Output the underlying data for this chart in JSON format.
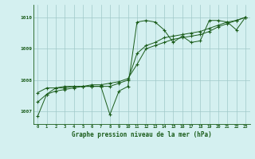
{
  "title": "Graphe pression niveau de la mer (hPa)",
  "bg_color": "#d4f0f0",
  "grid_color": "#a0c8c8",
  "line_color": "#1a5c1a",
  "xlim": [
    -0.5,
    23.5
  ],
  "ylim": [
    1006.6,
    1010.4
  ],
  "yticks": [
    1007,
    1008,
    1009,
    1010
  ],
  "xticks": [
    0,
    1,
    2,
    3,
    4,
    5,
    6,
    7,
    8,
    9,
    10,
    11,
    12,
    13,
    14,
    15,
    16,
    17,
    18,
    19,
    20,
    21,
    22,
    23
  ],
  "series1": [
    1006.85,
    1007.55,
    1007.75,
    1007.75,
    1007.8,
    1007.8,
    1007.8,
    1007.8,
    1006.9,
    1007.65,
    1007.8,
    1009.85,
    1009.9,
    1009.85,
    1009.6,
    1009.2,
    1009.4,
    1009.2,
    1009.25,
    1009.9,
    1009.9,
    1009.85,
    1009.6,
    1010.0
  ],
  "series2": [
    1007.6,
    1007.75,
    1007.75,
    1007.8,
    1007.8,
    1007.8,
    1007.8,
    1007.8,
    1007.8,
    1007.9,
    1008.0,
    1008.85,
    1009.1,
    1009.2,
    1009.35,
    1009.4,
    1009.45,
    1009.5,
    1009.55,
    1009.65,
    1009.75,
    1009.85,
    1009.9,
    1010.0
  ],
  "series3": [
    1007.3,
    1007.55,
    1007.65,
    1007.7,
    1007.75,
    1007.8,
    1007.85,
    1007.85,
    1007.9,
    1007.95,
    1008.05,
    1008.5,
    1009.0,
    1009.1,
    1009.2,
    1009.3,
    1009.35,
    1009.4,
    1009.45,
    1009.55,
    1009.7,
    1009.8,
    1009.9,
    1010.0
  ]
}
